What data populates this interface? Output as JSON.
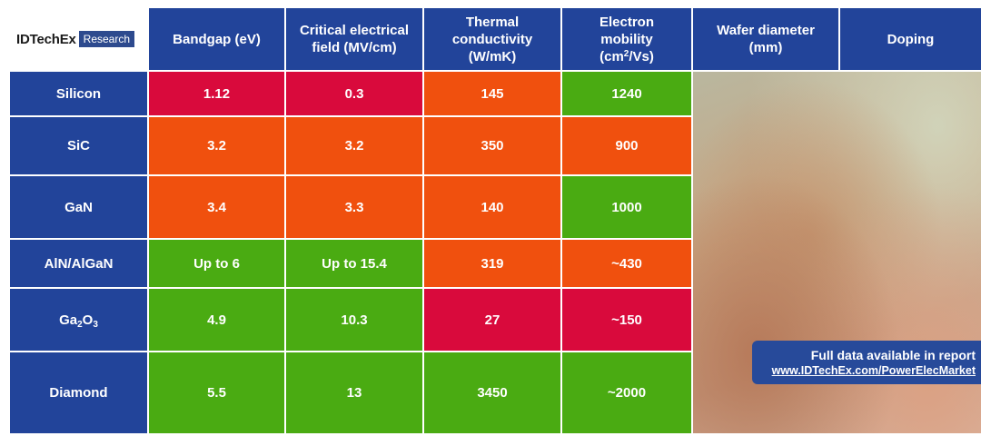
{
  "logo": {
    "brand": "IDTechEx",
    "sub": "Research"
  },
  "headers": {
    "bandgap": "Bandgap (eV)",
    "field": "Critical electrical field (MV/cm)",
    "thermal": "Thermal conductivity (W/mK)",
    "mobility_line1": "Electron",
    "mobility_line2_pre": "mobility",
    "mobility_unit_a": "(cm",
    "mobility_sup": "2",
    "mobility_unit_b": "/Vs)",
    "wafer": "Wafer diameter (mm)",
    "doping": "Doping"
  },
  "materials": {
    "silicon": "Silicon",
    "sic": "SiC",
    "gan": "GaN",
    "algan": "AlN/AlGaN",
    "ga2o3_a": "Ga",
    "ga2o3_sub1": "2",
    "ga2o3_b": "O",
    "ga2o3_sub2": "3",
    "diamond": "Diamond"
  },
  "values": {
    "silicon": {
      "bandgap": "1.12",
      "field": "0.3",
      "thermal": "145",
      "mobility": "1240"
    },
    "sic": {
      "bandgap": "3.2",
      "field": "3.2",
      "thermal": "350",
      "mobility": "900"
    },
    "gan": {
      "bandgap": "3.4",
      "field": "3.3",
      "thermal": "140",
      "mobility": "1000"
    },
    "algan": {
      "bandgap": "Up to 6",
      "field": "Up to 15.4",
      "thermal": "319",
      "mobility": "~430"
    },
    "ga2o3": {
      "bandgap": "4.9",
      "field": "10.3",
      "thermal": "27",
      "mobility": "~150"
    },
    "diamond": {
      "bandgap": "5.5",
      "field": "13",
      "thermal": "3450",
      "mobility": "~2000"
    }
  },
  "callout": {
    "line1": "Full data available in report",
    "line2": "www.IDTechEx.com/PowerElecMarket"
  },
  "colors": {
    "header": "#22449a",
    "red": "#d90a3c",
    "orange": "#f0500e",
    "green": "#4aab12"
  }
}
